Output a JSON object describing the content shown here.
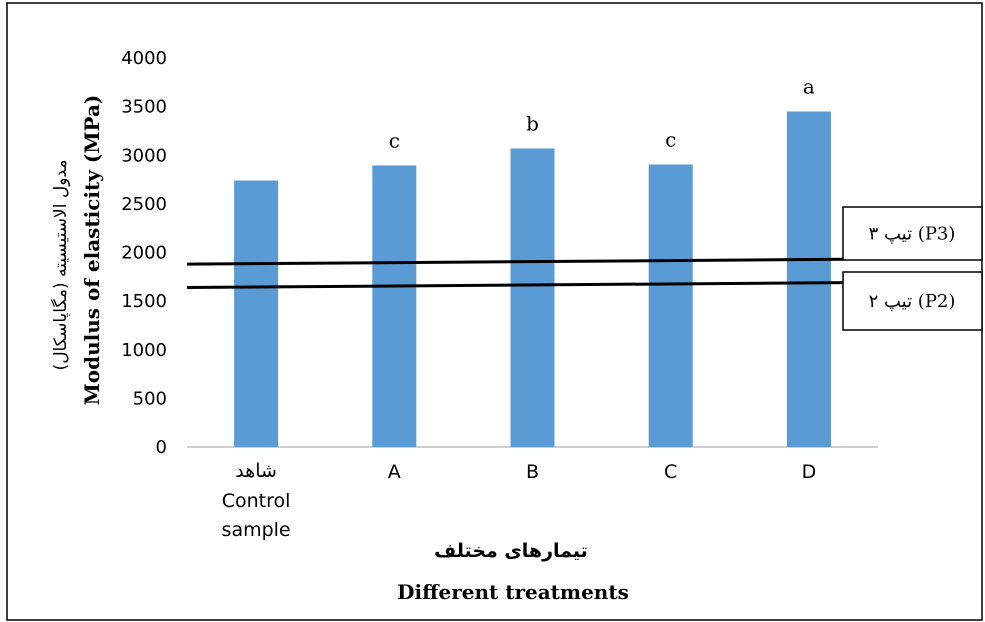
{
  "chart_data": {
    "type": "bar",
    "categories": [
      {
        "label_fa": "شاهد",
        "label": "Control sample"
      },
      {
        "label": "A"
      },
      {
        "label": "B"
      },
      {
        "label": "C"
      },
      {
        "label": "D"
      }
    ],
    "values": [
      2740,
      2895,
      3070,
      2905,
      3450
    ],
    "letters": [
      "",
      "c",
      "b",
      "c",
      "a"
    ],
    "ylabel": "Modulus of elasticity (MPa)",
    "ylabel_fa": "مدول الاستیسیته (مگاپاسکال)",
    "xlabel": "Different treatments",
    "xlabel_fa": "تیمارهای مختلف",
    "yticks": [
      0,
      500,
      1000,
      1500,
      2000,
      2500,
      3000,
      3500,
      4000
    ],
    "ylim": [
      0,
      4000
    ],
    "grid": false,
    "bar_color": "#5b9bd5",
    "reference_lines": [
      {
        "label": "تیپ ۳ (P3)",
        "value_left": 1880,
        "value_right": 1930
      },
      {
        "label": "تیپ ۲ (P2)",
        "value_left": 1640,
        "value_right": 1690
      }
    ]
  }
}
